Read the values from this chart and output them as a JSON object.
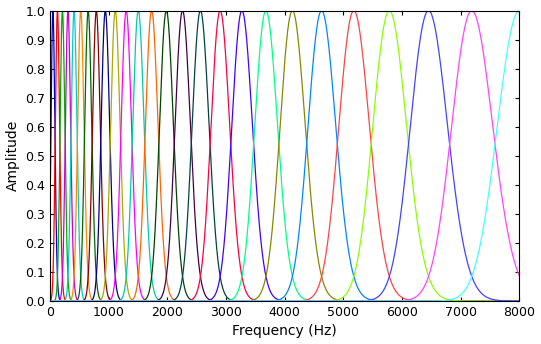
{
  "title": "",
  "xlabel": "Frequency (Hz)",
  "ylabel": "Amplitude",
  "xlim": [
    0,
    8000
  ],
  "ylim": [
    0,
    1
  ],
  "num_filters": 26,
  "f_min": 0,
  "f_max": 8000,
  "sigma_factor": 0.45,
  "colors": [
    "#0000cc",
    "#ff0000",
    "#00aa00",
    "#cc00cc",
    "#00cccc",
    "#ff8800",
    "#006600",
    "#880000",
    "#000088",
    "#aaaa00",
    "#ff00ff",
    "#00ccaa",
    "#ff6600",
    "#004400",
    "#440044",
    "#004444",
    "#ff0044",
    "#4400ff",
    "#00ff88",
    "#888800",
    "#0088ff",
    "#ff4444",
    "#88ff00",
    "#4444ff",
    "#ff44ff",
    "#44ffff"
  ],
  "xticks": [
    0,
    1000,
    2000,
    3000,
    4000,
    5000,
    6000,
    7000,
    8000
  ],
  "yticks": [
    0,
    0.1,
    0.2,
    0.3,
    0.4,
    0.5,
    0.6,
    0.7,
    0.8,
    0.9,
    1.0
  ],
  "figsize": [
    5.41,
    3.44
  ],
  "dpi": 100,
  "linewidth": 0.9
}
